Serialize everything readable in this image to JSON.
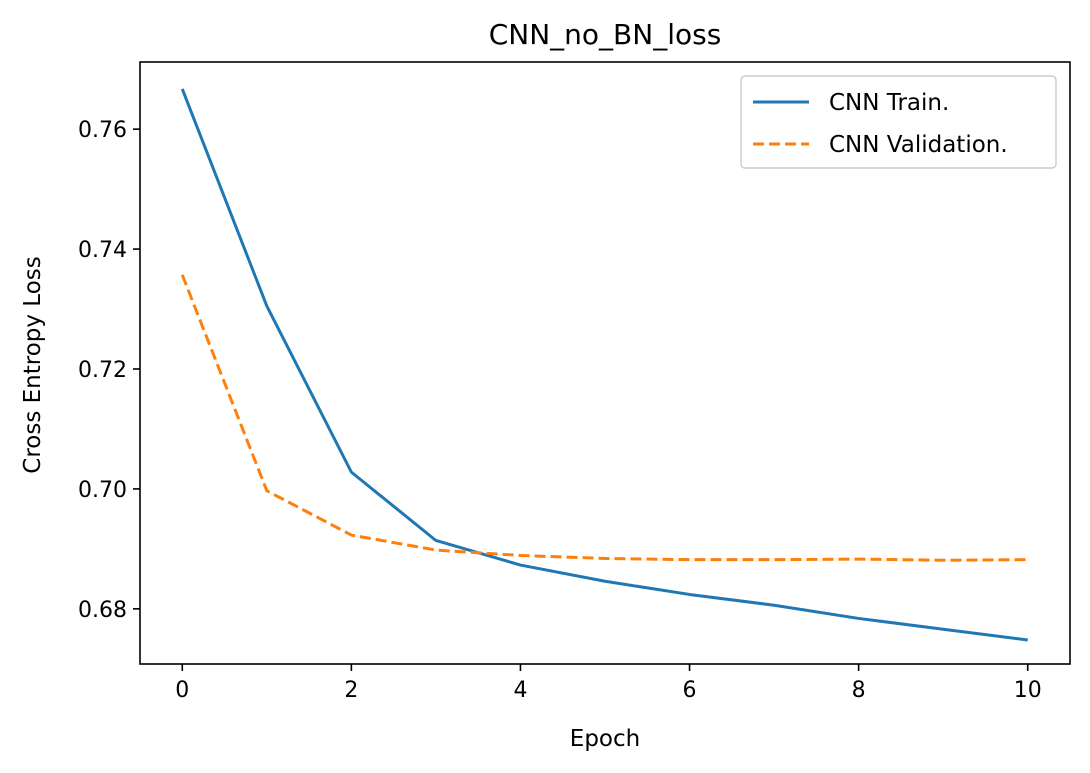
{
  "chart_data": {
    "type": "line",
    "title": "CNN_no_BN_loss",
    "xlabel": "Epoch",
    "ylabel": "Cross Entropy Loss",
    "xlim": [
      -0.5,
      10.5
    ],
    "ylim": [
      0.6708,
      0.7712
    ],
    "xticks": [
      0,
      2,
      4,
      6,
      8,
      10
    ],
    "yticks": [
      0.68,
      0.7,
      0.72,
      0.74,
      0.76
    ],
    "ytick_labels": [
      "0.68",
      "0.70",
      "0.72",
      "0.74",
      "0.76"
    ],
    "grid": false,
    "legend_position": "top-right",
    "x": [
      0,
      1,
      2,
      3,
      4,
      5,
      6,
      7,
      8,
      9,
      10
    ],
    "series": [
      {
        "name": "CNN Train.",
        "color": "#1f77b4",
        "line_style": "solid",
        "values": [
          0.7667,
          0.7305,
          0.7028,
          0.6914,
          0.6873,
          0.6846,
          0.6824,
          0.6806,
          0.6784,
          0.6766,
          0.6748
        ]
      },
      {
        "name": "CNN Validation.",
        "color": "#ff7f0e",
        "line_style": "dashed",
        "values": [
          0.7357,
          0.6997,
          0.6923,
          0.6898,
          0.6889,
          0.6884,
          0.6882,
          0.6882,
          0.6883,
          0.6881,
          0.6882
        ]
      }
    ]
  }
}
